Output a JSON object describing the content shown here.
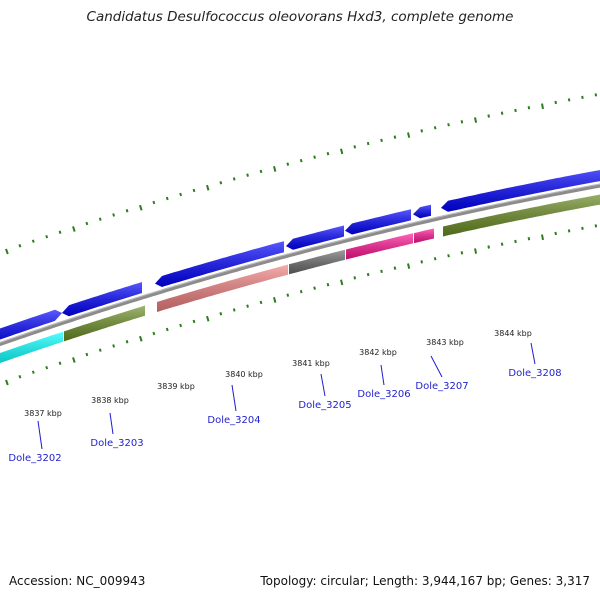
{
  "title": "Candidatus Desulfococcus oleovorans Hxd3, complete genome",
  "footer": {
    "accession": "Accession: NC_009943",
    "stats": "Topology: circular; Length: 3,944,167 bp; Genes: 3,317"
  },
  "scale_labels": [
    "3837 kbp",
    "3838 kbp",
    "3839 kbp",
    "3840 kbp",
    "3841 kbp",
    "3842 kbp",
    "3843 kbp",
    "3844 kbp"
  ],
  "genes": [
    {
      "label": "Dole_3202",
      "color": "#00ffff"
    },
    {
      "label": "Dole_3203",
      "color": "#6b8e23"
    },
    {
      "label": "Dole_3204",
      "color": "#f08080"
    },
    {
      "label": "Dole_3205",
      "color": "#696969"
    },
    {
      "label": "Dole_3206",
      "color": "#ff1493"
    },
    {
      "label": "Dole_3207",
      "color": "#ff1493"
    },
    {
      "label": "Dole_3208",
      "color": "#6b8e23"
    }
  ],
  "colors": {
    "forward_strand": "#0000ff",
    "backbone": "#8c8c8c",
    "tick": "#2e7d1f"
  }
}
